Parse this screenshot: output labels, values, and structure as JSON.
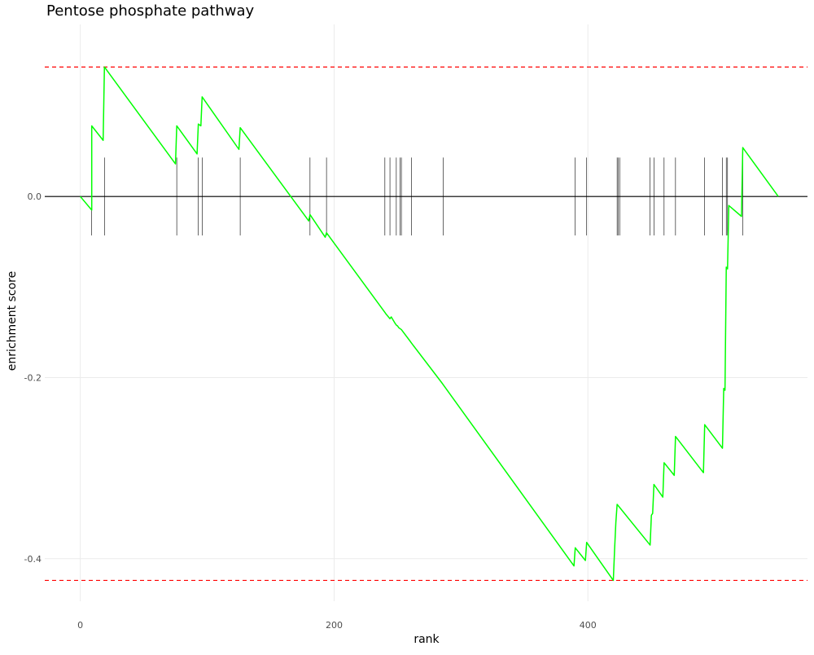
{
  "chart_data": {
    "type": "line",
    "title": "Pentose phosphate pathway",
    "xlabel": "rank",
    "ylabel": "enrichment score",
    "xlim": [
      -28,
      573
    ],
    "ylim": [
      -0.447,
      0.19
    ],
    "x_ticks": [
      {
        "value": 0,
        "label": "0"
      },
      {
        "value": 200,
        "label": "200"
      },
      {
        "value": 400,
        "label": "400"
      }
    ],
    "y_ticks": [
      {
        "value": 0.0,
        "label": "0.0"
      },
      {
        "value": -0.2,
        "label": "-0.2"
      },
      {
        "value": -0.4,
        "label": "-0.4"
      }
    ],
    "grid": true,
    "zero_line": 0.0,
    "reference_lines": [
      {
        "value": 0.143,
        "color": "#ff0000",
        "style": "dashed"
      },
      {
        "value": -0.424,
        "color": "#ff0000",
        "style": "dashed"
      }
    ],
    "line_color": "#00ff00",
    "series": [
      {
        "x": [
          0,
          9,
          9,
          18,
          19,
          75,
          76,
          92,
          93,
          95,
          96,
          125,
          126,
          180,
          181,
          193,
          194,
          240,
          241,
          244,
          245,
          248,
          249,
          250,
          251,
          252,
          253,
          260,
          261,
          285,
          286,
          389,
          390,
          398,
          399,
          420,
          421,
          422,
          423,
          449,
          450,
          451,
          452,
          459,
          460,
          468,
          469,
          491,
          492,
          506,
          507,
          508,
          509,
          510,
          511,
          521,
          522,
          550
        ],
        "y": [
          0.0,
          -0.015,
          0.078,
          0.062,
          0.143,
          0.036,
          0.078,
          0.047,
          0.08,
          0.078,
          0.11,
          0.052,
          0.076,
          -0.027,
          -0.02,
          -0.045,
          -0.04,
          -0.128,
          -0.13,
          -0.135,
          -0.133,
          -0.14,
          -0.142,
          -0.143,
          -0.145,
          -0.146,
          -0.147,
          -0.16,
          -0.162,
          -0.206,
          -0.208,
          -0.408,
          -0.388,
          -0.402,
          -0.382,
          -0.424,
          -0.39,
          -0.36,
          -0.34,
          -0.385,
          -0.352,
          -0.35,
          -0.318,
          -0.332,
          -0.294,
          -0.308,
          -0.265,
          -0.305,
          -0.252,
          -0.278,
          -0.212,
          -0.214,
          -0.078,
          -0.08,
          -0.01,
          -0.022,
          0.054,
          0.0
        ]
      }
    ],
    "hit_positions": [
      9,
      19,
      76,
      93,
      96,
      126,
      181,
      194,
      240,
      244,
      249,
      252,
      253,
      261,
      286,
      390,
      399,
      423,
      424,
      425,
      449,
      452,
      460,
      469,
      492,
      506,
      509,
      510,
      522
    ]
  }
}
